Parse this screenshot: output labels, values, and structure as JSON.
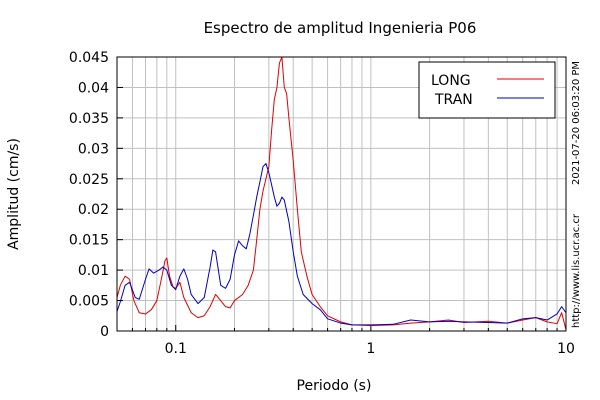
{
  "chart_data": {
    "type": "line",
    "title": "Espectro de amplitud Ingenieria P06",
    "xlabel": "Periodo (s)",
    "ylabel": "Amplitud (cm/s)",
    "x_scale": "log",
    "xlim": [
      0.05,
      10
    ],
    "ylim": [
      0,
      0.045
    ],
    "grid": true,
    "legend_position": "top-right",
    "x_tick_labels": [
      "0.1",
      "1",
      "10"
    ],
    "x_tick_values": [
      0.1,
      1,
      10
    ],
    "y_tick_labels": [
      "0",
      "0.005",
      "0.01",
      "0.015",
      "0.02",
      "0.025",
      "0.03",
      "0.035",
      "0.04",
      "0.045"
    ],
    "y_tick_values": [
      0,
      0.005,
      0.01,
      0.015,
      0.02,
      0.025,
      0.03,
      0.035,
      0.04,
      0.045
    ],
    "side_annotations": [
      "2021-07-20 06:03:20 PM",
      "http://www.lis.ucr.ac.cr"
    ],
    "series": [
      {
        "name": "LONG",
        "color": "#e00000",
        "points": [
          [
            0.05,
            0.0055
          ],
          [
            0.052,
            0.0075
          ],
          [
            0.055,
            0.009
          ],
          [
            0.058,
            0.0085
          ],
          [
            0.061,
            0.005
          ],
          [
            0.065,
            0.003
          ],
          [
            0.07,
            0.0028
          ],
          [
            0.075,
            0.0035
          ],
          [
            0.08,
            0.005
          ],
          [
            0.085,
            0.009
          ],
          [
            0.088,
            0.0115
          ],
          [
            0.09,
            0.012
          ],
          [
            0.093,
            0.009
          ],
          [
            0.097,
            0.0072
          ],
          [
            0.1,
            0.007
          ],
          [
            0.105,
            0.008
          ],
          [
            0.11,
            0.0055
          ],
          [
            0.12,
            0.003
          ],
          [
            0.13,
            0.0022
          ],
          [
            0.14,
            0.0025
          ],
          [
            0.15,
            0.004
          ],
          [
            0.16,
            0.006
          ],
          [
            0.165,
            0.0055
          ],
          [
            0.18,
            0.004
          ],
          [
            0.19,
            0.0038
          ],
          [
            0.2,
            0.005
          ],
          [
            0.22,
            0.006
          ],
          [
            0.235,
            0.0075
          ],
          [
            0.25,
            0.01
          ],
          [
            0.26,
            0.015
          ],
          [
            0.27,
            0.02
          ],
          [
            0.28,
            0.023
          ],
          [
            0.29,
            0.025
          ],
          [
            0.3,
            0.027
          ],
          [
            0.31,
            0.033
          ],
          [
            0.32,
            0.038
          ],
          [
            0.33,
            0.04
          ],
          [
            0.34,
            0.044
          ],
          [
            0.35,
            0.045
          ],
          [
            0.36,
            0.04
          ],
          [
            0.37,
            0.039
          ],
          [
            0.38,
            0.035
          ],
          [
            0.4,
            0.028
          ],
          [
            0.42,
            0.02
          ],
          [
            0.44,
            0.013
          ],
          [
            0.47,
            0.009
          ],
          [
            0.5,
            0.006
          ],
          [
            0.55,
            0.004
          ],
          [
            0.6,
            0.0025
          ],
          [
            0.7,
            0.0015
          ],
          [
            0.8,
            0.001
          ],
          [
            1,
            0.0009
          ],
          [
            1.3,
            0.001
          ],
          [
            1.6,
            0.0013
          ],
          [
            2,
            0.0015
          ],
          [
            2.5,
            0.0018
          ],
          [
            3,
            0.0014
          ],
          [
            4,
            0.0016
          ],
          [
            5,
            0.0013
          ],
          [
            6,
            0.0018
          ],
          [
            7,
            0.0022
          ],
          [
            8,
            0.0015
          ],
          [
            9,
            0.0012
          ],
          [
            9.5,
            0.003
          ],
          [
            10,
            0.0002
          ]
        ]
      },
      {
        "name": "TRAN",
        "color": "#0000c0",
        "points": [
          [
            0.05,
            0.0032
          ],
          [
            0.052,
            0.0048
          ],
          [
            0.055,
            0.0075
          ],
          [
            0.058,
            0.008
          ],
          [
            0.062,
            0.0055
          ],
          [
            0.065,
            0.0052
          ],
          [
            0.07,
            0.0085
          ],
          [
            0.073,
            0.0102
          ],
          [
            0.077,
            0.0095
          ],
          [
            0.082,
            0.01
          ],
          [
            0.086,
            0.0105
          ],
          [
            0.09,
            0.01
          ],
          [
            0.095,
            0.0075
          ],
          [
            0.1,
            0.0068
          ],
          [
            0.105,
            0.009
          ],
          [
            0.11,
            0.0102
          ],
          [
            0.115,
            0.0085
          ],
          [
            0.12,
            0.006
          ],
          [
            0.13,
            0.0045
          ],
          [
            0.14,
            0.0055
          ],
          [
            0.15,
            0.0105
          ],
          [
            0.155,
            0.0133
          ],
          [
            0.16,
            0.013
          ],
          [
            0.17,
            0.0075
          ],
          [
            0.18,
            0.007
          ],
          [
            0.19,
            0.0085
          ],
          [
            0.2,
            0.0125
          ],
          [
            0.21,
            0.0148
          ],
          [
            0.22,
            0.014
          ],
          [
            0.23,
            0.0135
          ],
          [
            0.24,
            0.016
          ],
          [
            0.25,
            0.019
          ],
          [
            0.26,
            0.022
          ],
          [
            0.27,
            0.0245
          ],
          [
            0.28,
            0.027
          ],
          [
            0.29,
            0.0275
          ],
          [
            0.3,
            0.026
          ],
          [
            0.31,
            0.024
          ],
          [
            0.32,
            0.022
          ],
          [
            0.33,
            0.0205
          ],
          [
            0.34,
            0.021
          ],
          [
            0.35,
            0.022
          ],
          [
            0.36,
            0.0215
          ],
          [
            0.38,
            0.018
          ],
          [
            0.4,
            0.013
          ],
          [
            0.42,
            0.009
          ],
          [
            0.45,
            0.006
          ],
          [
            0.5,
            0.0045
          ],
          [
            0.55,
            0.0035
          ],
          [
            0.6,
            0.002
          ],
          [
            0.7,
            0.0013
          ],
          [
            0.8,
            0.001
          ],
          [
            1,
            0.001
          ],
          [
            1.3,
            0.0011
          ],
          [
            1.6,
            0.0018
          ],
          [
            2,
            0.0015
          ],
          [
            2.5,
            0.0016
          ],
          [
            3,
            0.0015
          ],
          [
            4,
            0.0014
          ],
          [
            5,
            0.0013
          ],
          [
            6,
            0.002
          ],
          [
            7,
            0.0022
          ],
          [
            8,
            0.0018
          ],
          [
            9,
            0.0028
          ],
          [
            9.5,
            0.004
          ],
          [
            10,
            0.003
          ]
        ]
      }
    ]
  }
}
